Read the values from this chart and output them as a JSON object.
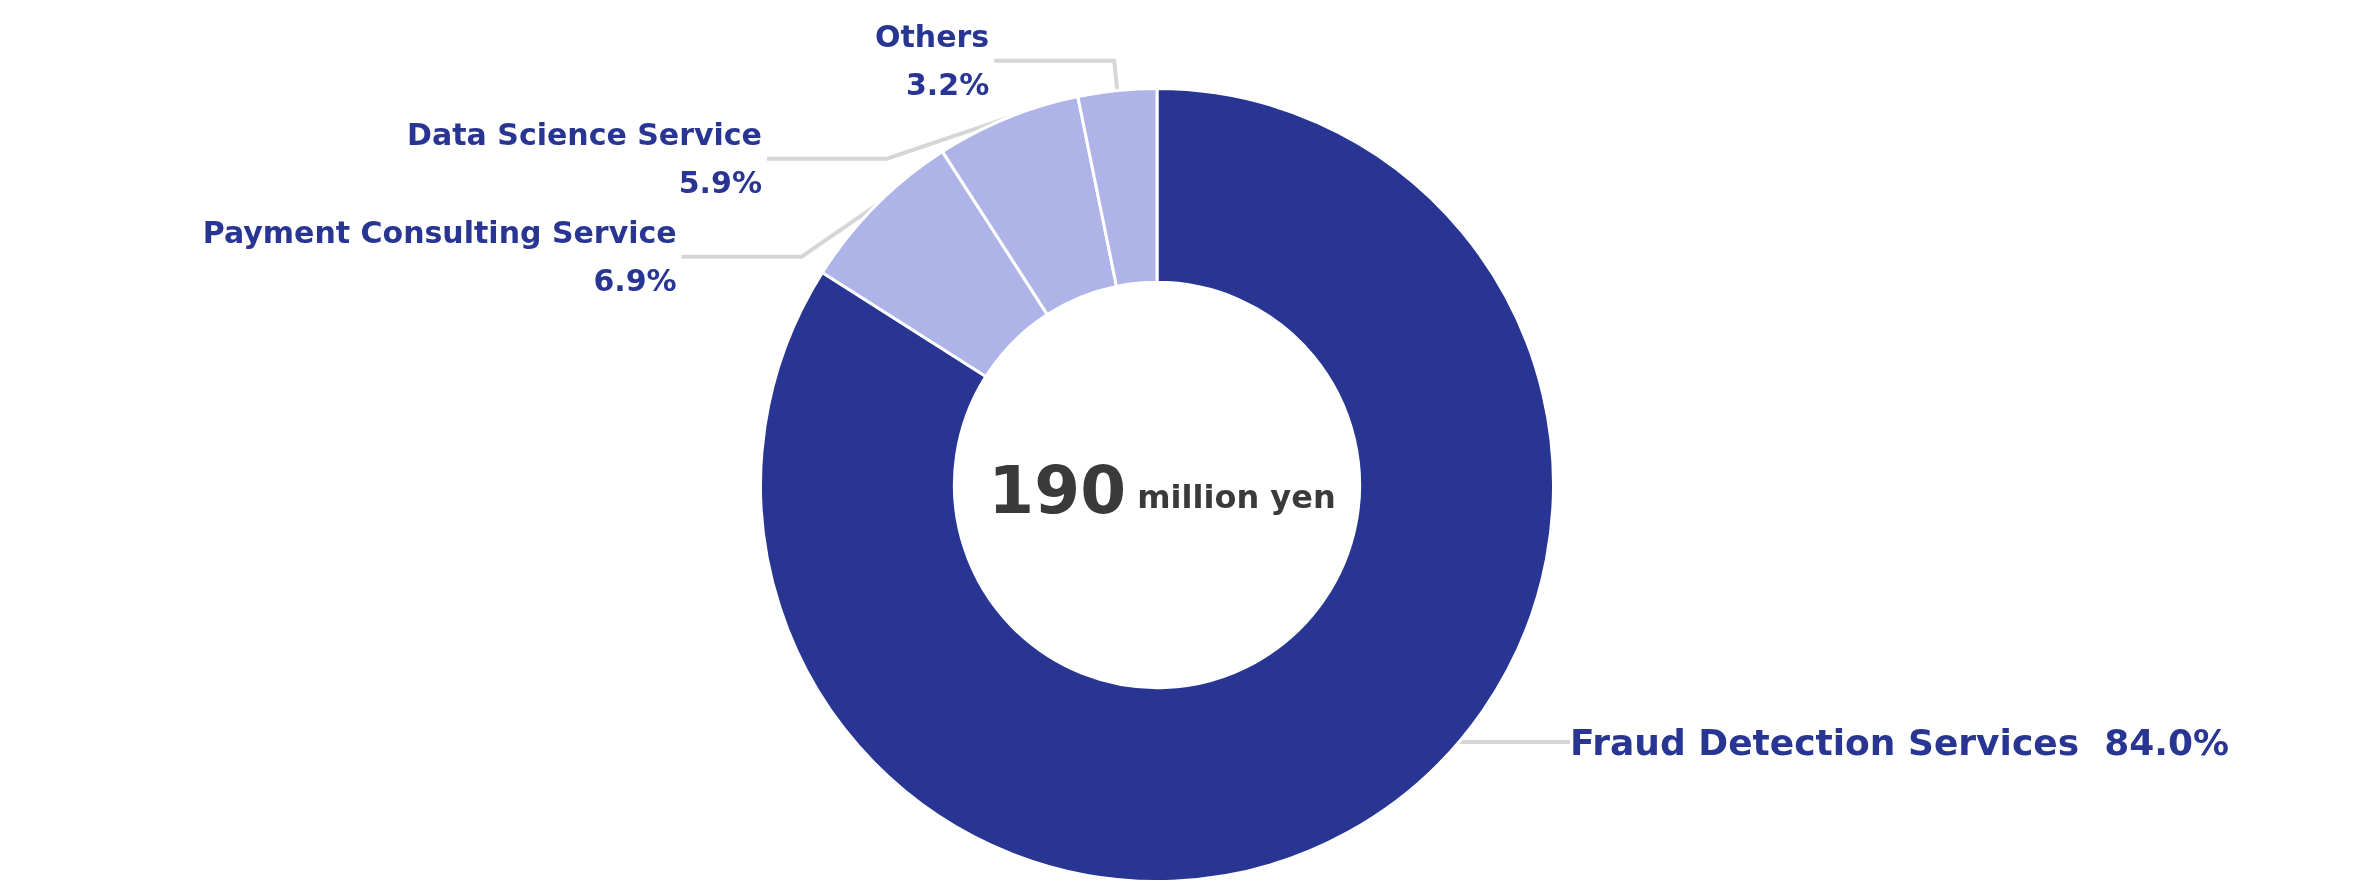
{
  "chart_data": {
    "type": "donut",
    "categories": [
      "Fraud Detection Services",
      "Payment Consulting Service",
      "Data Science Service",
      "Others"
    ],
    "values": [
      84.0,
      6.9,
      5.9,
      3.2
    ],
    "colors": [
      "#283593",
      "#aeb4e8",
      "#aeb4e8",
      "#aeb4e8"
    ],
    "value_labels": [
      "84.0%",
      "6.9%",
      "5.9%",
      "3.2%"
    ],
    "annotations": [
      "190 million yen"
    ],
    "legend": false
  }
}
